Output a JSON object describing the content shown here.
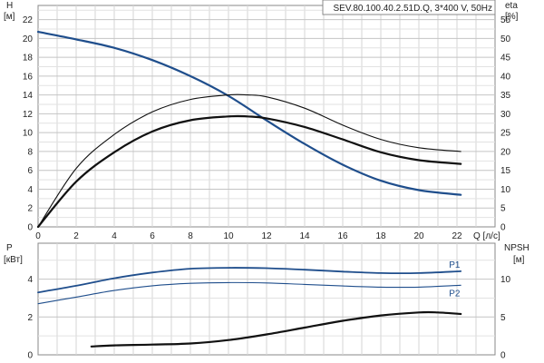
{
  "chart_data": [
    {
      "type": "line",
      "title": "SEV.80.100.40.2.51D.Q, 3*400 V, 50Hz",
      "xlabel": "Q [л/с]",
      "x_ticks": [
        0,
        2,
        4,
        6,
        8,
        10,
        12,
        14,
        16,
        18,
        20,
        22
      ],
      "xlim": [
        0,
        24
      ],
      "ylabel": "H",
      "ylabel_unit": "[м]",
      "y_ticks": [
        0,
        2,
        4,
        6,
        8,
        10,
        12,
        14,
        16,
        18,
        20,
        22
      ],
      "ylim": [
        0,
        23.5
      ],
      "y2label": "eta",
      "y2label_unit": "[%]",
      "y2_ticks": [
        0,
        5,
        10,
        15,
        20,
        25,
        30,
        35,
        40,
        45,
        50,
        55
      ],
      "y2lim": [
        0,
        58.75
      ],
      "grid": true,
      "series": [
        {
          "axis": "y",
          "color": "#1f4e8c",
          "width": 2.2,
          "x": [
            0,
            2,
            4,
            6,
            8,
            10,
            12,
            14,
            16,
            18,
            20,
            22.2
          ],
          "y": [
            20.7,
            19.9,
            19.0,
            17.7,
            16.0,
            13.9,
            11.3,
            8.8,
            6.6,
            4.9,
            3.9,
            3.4
          ]
        },
        {
          "axis": "y2",
          "color": "#111111",
          "width": 1.1,
          "x": [
            0,
            2,
            4,
            6,
            8,
            10,
            11,
            12,
            14,
            16,
            18,
            20,
            22.2
          ],
          "y": [
            0,
            15.5,
            24.5,
            30.5,
            33.8,
            35.0,
            35.0,
            34.5,
            31.5,
            27.0,
            23.2,
            21.0,
            20.0
          ]
        },
        {
          "axis": "y2",
          "color": "#111111",
          "width": 2.2,
          "x": [
            0,
            2,
            4,
            6,
            8,
            10,
            11,
            12,
            14,
            16,
            18,
            20,
            22.2
          ],
          "y": [
            0,
            12.0,
            19.8,
            25.3,
            28.3,
            29.3,
            29.3,
            28.8,
            26.5,
            23.2,
            19.8,
            17.7,
            16.7
          ]
        }
      ]
    },
    {
      "type": "line",
      "ylabel": "P",
      "ylabel_unit": "[кВт]",
      "y_ticks": [
        0,
        2,
        4
      ],
      "ylim": [
        0,
        5.9
      ],
      "y2label": "NPSH",
      "y2label_unit": "[м]",
      "y2_ticks": [
        0,
        5,
        10
      ],
      "y2lim": [
        0,
        14.75
      ],
      "xlim": [
        0,
        24
      ],
      "grid": true,
      "series": [
        {
          "name": "P1",
          "axis": "y",
          "color": "#1f4e8c",
          "width": 1.8,
          "x": [
            0,
            2,
            4,
            6,
            8,
            10,
            12,
            14,
            16,
            18,
            20,
            22.2
          ],
          "y": [
            3.3,
            3.65,
            4.05,
            4.35,
            4.55,
            4.6,
            4.58,
            4.5,
            4.4,
            4.32,
            4.32,
            4.42
          ]
        },
        {
          "name": "P2",
          "axis": "y",
          "color": "#1f4e8c",
          "width": 1.1,
          "x": [
            0,
            2,
            4,
            6,
            8,
            10,
            12,
            14,
            16,
            18,
            20,
            22.2
          ],
          "y": [
            2.7,
            3.05,
            3.4,
            3.65,
            3.78,
            3.82,
            3.8,
            3.72,
            3.64,
            3.58,
            3.58,
            3.68
          ]
        },
        {
          "axis": "y2",
          "color": "#111111",
          "width": 2.2,
          "x": [
            2.8,
            4,
            6,
            8,
            10,
            12,
            14,
            16,
            18,
            20,
            21,
            22.2
          ],
          "y": [
            1.1,
            1.25,
            1.35,
            1.5,
            1.95,
            2.7,
            3.6,
            4.5,
            5.2,
            5.6,
            5.6,
            5.4
          ]
        }
      ]
    }
  ]
}
